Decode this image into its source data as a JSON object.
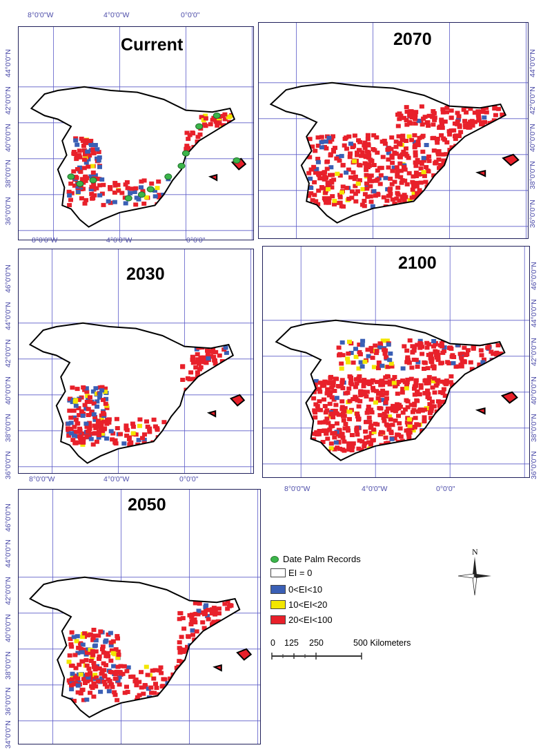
{
  "panels": [
    {
      "title": "Current",
      "lon_labels": [
        "8°0'0\"W",
        "4°0'0\"W",
        "0°0'0\""
      ],
      "lat_labels": [
        "44°0'0\"N",
        "42°0'0\"N",
        "40°0'0\"N",
        "38°0'0\"N",
        "36°0'0\"N"
      ]
    },
    {
      "title": "2070",
      "lon_labels": [],
      "lat_labels": [
        "44°0'0\"N",
        "42°0'0\"N",
        "40°0'0\"N",
        "38°0'0\"N",
        "36°0'0\"N"
      ]
    },
    {
      "title": "2030",
      "lon_labels": [
        "8°0'0\"W",
        "4°0'0\"W",
        "0°0'0\""
      ],
      "lat_labels": [
        "46°0'0\"N",
        "44°0'0\"N",
        "42°0'0\"N",
        "40°0'0\"N",
        "38°0'0\"N",
        "36°0'0\"N"
      ]
    },
    {
      "title": "2100",
      "lon_labels": [
        "8°0'0\"W",
        "4°0'0\"W",
        "0°0'0\""
      ],
      "lat_labels": [
        "46°0'0\"N",
        "44°0'0\"N",
        "42°0'0\"N",
        "40°0'0\"N",
        "38°0'0\"N",
        "36°0'0\"N"
      ]
    },
    {
      "title": "2050",
      "lon_labels": [],
      "lat_labels": [
        "46°0'0\"N",
        "44°0'0\"N",
        "42°0'0\"N",
        "40°0'0\"N",
        "38°0'0\"N",
        "36°0'0\"N",
        "34°0'0\"N"
      ]
    }
  ],
  "top_lon_labels": [
    "8°0'0\"W",
    "4°0'0\"W",
    "0°0'0\""
  ],
  "legend": {
    "records": "Date  Palm Records",
    "classes": [
      {
        "label": "EI = 0",
        "color": "#ffffff"
      },
      {
        "label": "0<EI<10",
        "color": "#3a5fb5"
      },
      {
        "label": "10<EI<20",
        "color": "#f2e600"
      },
      {
        "label": "20<EI<100",
        "color": "#e8202a"
      }
    ]
  },
  "scale": {
    "labels": [
      "0",
      "125",
      "250",
      "500 Kilometers"
    ]
  },
  "north": "N"
}
